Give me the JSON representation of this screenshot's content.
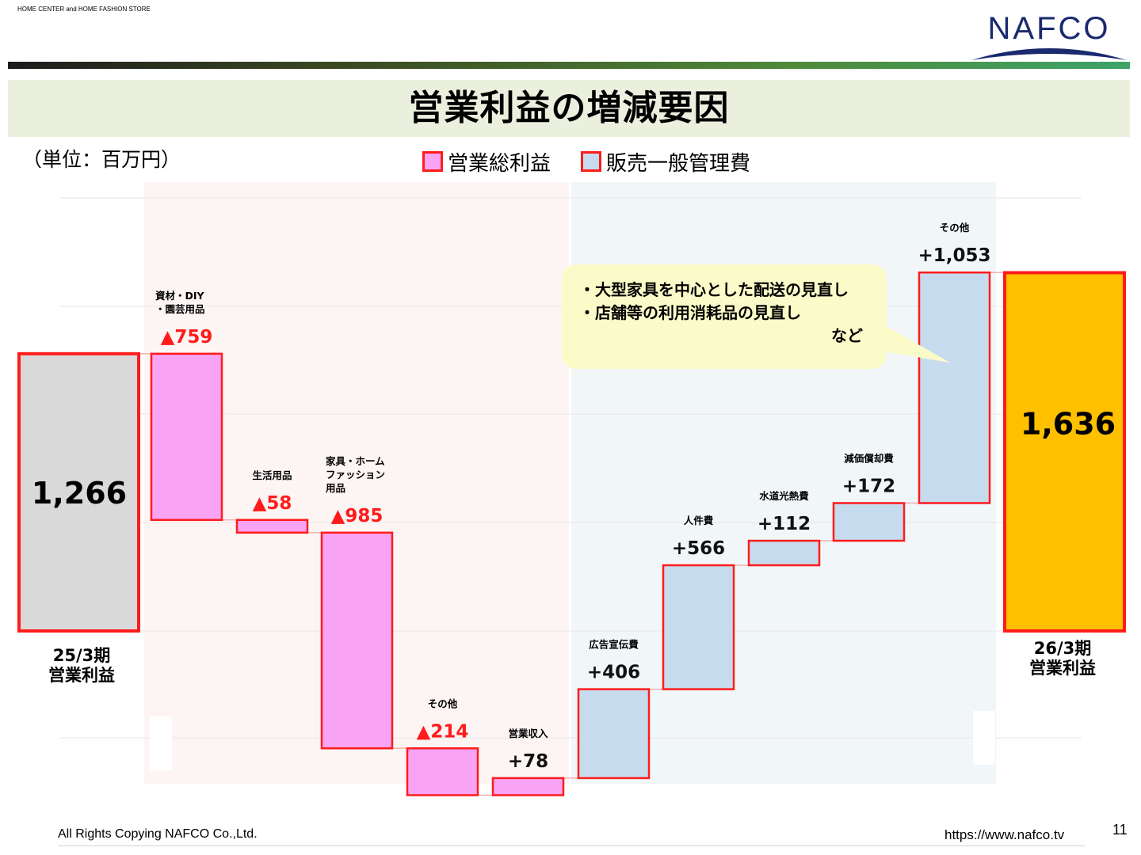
{
  "header": {
    "tagline": "HOME CENTER and HOME FASHION STORE",
    "logo_text": "NAFCO",
    "title": "営業利益の増減要因",
    "unit": "（単位：百万円）"
  },
  "legend": {
    "items": [
      {
        "label": "営業総利益",
        "color": "#f9a3f4"
      },
      {
        "label": "販売一般管理費",
        "color": "#c7dbef"
      }
    ]
  },
  "callout": {
    "lines": [
      "・大型家具を中心とした配送の見直し",
      "・店舗等の利用消耗品の見直し",
      "など"
    ]
  },
  "footer": {
    "copyright": "All Rights Copying NAFCO Co.,Ltd.",
    "url": "https://www.nafco.tv",
    "page": "11"
  },
  "colors": {
    "gross_profit": "#f9a3f4",
    "sga": "#c7dbef",
    "start": "#d9d9d9",
    "end": "#ffc000",
    "outline": "#ff1b1b",
    "negative_label": "#ff1b1b"
  },
  "chart_data": {
    "type": "waterfall",
    "start": {
      "category": "25/3期\n営業利益",
      "value": 1266,
      "label": "1,266"
    },
    "end": {
      "category": "26/3期\n営業利益",
      "value": 1636,
      "label": "1,636"
    },
    "steps": [
      {
        "category": "資材・DIY\n・園芸用品",
        "value": -759,
        "label": "▲759",
        "group": "営業総利益"
      },
      {
        "category": "生活用品",
        "value": -58,
        "label": "▲58",
        "group": "営業総利益"
      },
      {
        "category": "家具・ホーム\nファッション\n用品",
        "value": -985,
        "label": "▲985",
        "group": "営業総利益"
      },
      {
        "category": "その他",
        "value": -214,
        "label": "▲214",
        "group": "営業総利益"
      },
      {
        "category": "営業収入",
        "value": 78,
        "label": "+78",
        "group": "営業総利益"
      },
      {
        "category": "広告宣伝費",
        "value": 406,
        "label": "+406",
        "group": "販売一般管理費"
      },
      {
        "category": "人件費",
        "value": 566,
        "label": "+566",
        "group": "販売一般管理費"
      },
      {
        "category": "水道光熱費",
        "value": 112,
        "label": "+112",
        "group": "販売一般管理費"
      },
      {
        "category": "減価償却費",
        "value": 172,
        "label": "+172",
        "group": "販売一般管理費"
      },
      {
        "category": "その他",
        "value": 1053,
        "label": "+1,053",
        "group": "販売一般管理費"
      }
    ]
  }
}
